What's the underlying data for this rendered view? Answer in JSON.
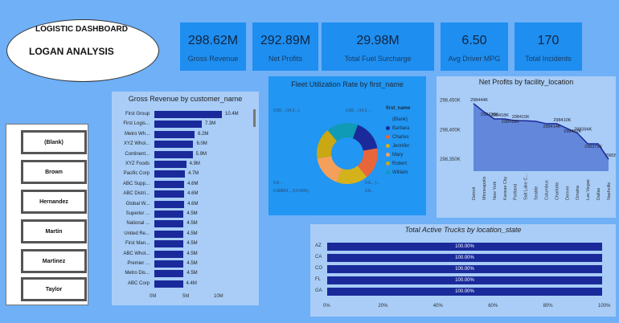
{
  "title": {
    "line1": "LOGISTIC DASHBOARD",
    "line2": "LOGAN ANALYSIS"
  },
  "kpis": [
    {
      "value": "298.62M",
      "label": "Gross Revenue"
    },
    {
      "value": "292.89M",
      "label": "Net Profits"
    },
    {
      "value": "29.98M",
      "label": "Total Fuel Surcharge"
    },
    {
      "value": "6.50",
      "label": "Avg Driver MPG"
    },
    {
      "value": "170",
      "label": "Total Incidents"
    }
  ],
  "slicer": {
    "items": [
      "(Blank)",
      "Brown",
      "Hernandez",
      "Martin",
      "Martinez",
      "Taylor"
    ]
  },
  "gross_revenue": {
    "title": "Gross Revenue by customer_name",
    "axis_ticks": [
      "0M",
      "5M",
      "10M"
    ]
  },
  "fleet": {
    "title": "Fleet Utilization Rate by first_name",
    "legend_title": "first_name",
    "legend": [
      {
        "name": "(Blank)",
        "color": "#2196f3"
      },
      {
        "name": "Barbara",
        "color": "#1a2a9a"
      },
      {
        "name": "Charles",
        "color": "#e8663a"
      },
      {
        "name": "Jennifer",
        "color": "#d4b21c"
      },
      {
        "name": "Mary",
        "color": "#f5a05a"
      },
      {
        "name": "Robert",
        "color": "#c9a814"
      },
      {
        "name": "William",
        "color": "#0f9bb5"
      }
    ],
    "labels": [
      "0.89... (14.2...)",
      "0.89... (14.2...",
      "0.8... (...",
      "0.8...",
      "0.88894... (14.09%)",
      "0.8..."
    ]
  },
  "net_profits": {
    "title": "Net Profits by facility_location",
    "y_ticks": [
      "298,450K",
      "298,400K",
      "298,350K"
    ],
    "point_labels": [
      "298444K",
      "298430K",
      "298418K",
      "298418K",
      "298415K",
      "298414K",
      "298410K",
      "298402K",
      "298394K",
      "298376K",
      "298350K"
    ]
  },
  "trucks": {
    "title": "Total Active Trucks by location_state",
    "x_ticks": [
      "0%",
      "20%",
      "40%",
      "60%",
      "80%",
      "100%"
    ]
  },
  "chart_data": [
    {
      "type": "bar",
      "title": "Gross Revenue by customer_name",
      "categories": [
        "First Group",
        "First Logis...",
        "Metro Wh...",
        "XYZ Whol...",
        "Continent...",
        "XYZ Foods",
        "Pacific Corp",
        "ABC Supp...",
        "ABC Distri...",
        "Global W...",
        "Superior ...",
        "National ...",
        "United Re...",
        "First Man...",
        "ABC Whol...",
        "Premier ...",
        "Metro Dis...",
        "ABC Corp"
      ],
      "values": [
        10.4,
        7.3,
        6.2,
        6.0,
        5.9,
        4.9,
        4.7,
        4.6,
        4.6,
        4.6,
        4.5,
        4.5,
        4.5,
        4.5,
        4.5,
        4.5,
        4.5,
        4.4
      ],
      "value_labels": [
        "10.4M",
        "7.3M",
        "6.2M",
        "6.0M",
        "5.9M",
        "4.9M",
        "4.7M",
        "4.6M",
        "4.6M",
        "4.6M",
        "4.5M",
        "4.5M",
        "4.5M",
        "4.5M",
        "4.5M",
        "4.5M",
        "4.5M",
        "4.4M"
      ],
      "xlim": [
        0,
        12
      ],
      "color": "#1a2a9a"
    },
    {
      "type": "pie",
      "title": "Fleet Utilization Rate by first_name",
      "categories": [
        "(Blank)",
        "Barbara",
        "Charles",
        "Jennifer",
        "Mary",
        "Robert",
        "William"
      ],
      "values": [
        0.01,
        14.2,
        14.2,
        14.2,
        14.1,
        14.09,
        14.2
      ]
    },
    {
      "type": "area",
      "title": "Net Profits by facility_location",
      "categories": [
        "Detroit",
        "Minneapolis",
        "New York",
        "Kansas City",
        "Portland",
        "Salt Lake C...",
        "Seattle",
        "Columbus",
        "Charlotte",
        "Denver",
        "Omaha",
        "Las Vegas",
        "Dallas",
        "Nashville"
      ],
      "values": [
        298444,
        298430,
        298418,
        298418,
        298415,
        298415,
        298414,
        298410,
        298410,
        298402,
        298394,
        298376,
        298376,
        298350
      ],
      "ylim": [
        298330,
        298460
      ]
    },
    {
      "type": "bar",
      "title": "Total Active Trucks by location_state",
      "categories": [
        "AZ",
        "CA",
        "CO",
        "FL",
        "GA"
      ],
      "values": [
        100,
        100,
        100,
        100,
        100
      ],
      "value_labels": [
        "100.00%",
        "100.00%",
        "100.00%",
        "100.00%",
        "100.00%"
      ],
      "xlim": [
        0,
        100
      ]
    }
  ]
}
